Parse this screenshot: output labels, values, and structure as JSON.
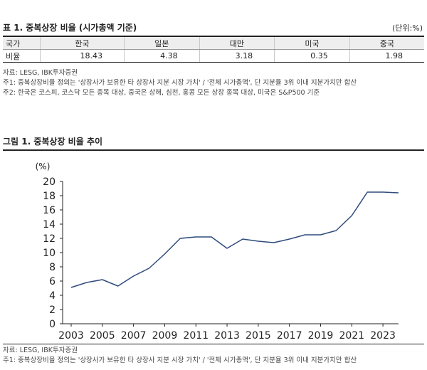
{
  "table": {
    "title": "표 1. 중복상장 비율 (시가총액 기준)",
    "unit": "(단위:%)",
    "headers": [
      "국가",
      "한국",
      "일본",
      "대만",
      "미국",
      "중국"
    ],
    "row_label": "비율",
    "values": [
      "18.43",
      "4.38",
      "3.18",
      "0.35",
      "1.98"
    ]
  },
  "table_notes": [
    "자료: LESG, IBK투자증권",
    "주1: 중복상장비율 정의는 '상장사가 보유한 타 상장사 지분 시장 가치' / '전체 시가총액', 단 지분율 3위 이내 지분가치만 합산",
    "주2: 한국은 코스피, 코스닥 모든 종목 대상, 중국은 상해, 심천, 홍콩 모든 상장 종목 대상, 미국은 S&P500 기준"
  ],
  "figure": {
    "title": "그림 1. 중복상장 비율 추이"
  },
  "chart_data": {
    "type": "line",
    "ylabel": "(%)",
    "ylim": [
      0,
      20
    ],
    "yticks": [
      0,
      2,
      4,
      6,
      8,
      10,
      12,
      14,
      16,
      18,
      20
    ],
    "xlim": [
      2003,
      2024
    ],
    "xticks": [
      2003,
      2005,
      2007,
      2009,
      2011,
      2013,
      2015,
      2017,
      2019,
      2021,
      2023
    ],
    "grid": false,
    "color": "#2f4b7c",
    "series": [
      {
        "x": [
          2003,
          2004,
          2005,
          2006,
          2007,
          2008,
          2009,
          2010,
          2011,
          2012,
          2013,
          2014,
          2015,
          2016,
          2017,
          2018,
          2019,
          2020,
          2021,
          2022,
          2023,
          2024
        ],
        "y": [
          5.1,
          5.8,
          6.2,
          5.3,
          6.7,
          7.8,
          9.8,
          12.0,
          12.2,
          12.2,
          10.6,
          11.9,
          11.6,
          11.4,
          11.9,
          12.5,
          12.5,
          13.1,
          15.2,
          18.5,
          18.5,
          18.4
        ]
      }
    ]
  },
  "figure_notes": [
    "자료: LESG, IBK투자증권",
    "주1: 중복상장비율 정의는 '상장사가 보유한 타 상장사 지분 시장 가치' / '전체 시가총액', 단 지분율 3위 이내 지분가치만 합산"
  ]
}
